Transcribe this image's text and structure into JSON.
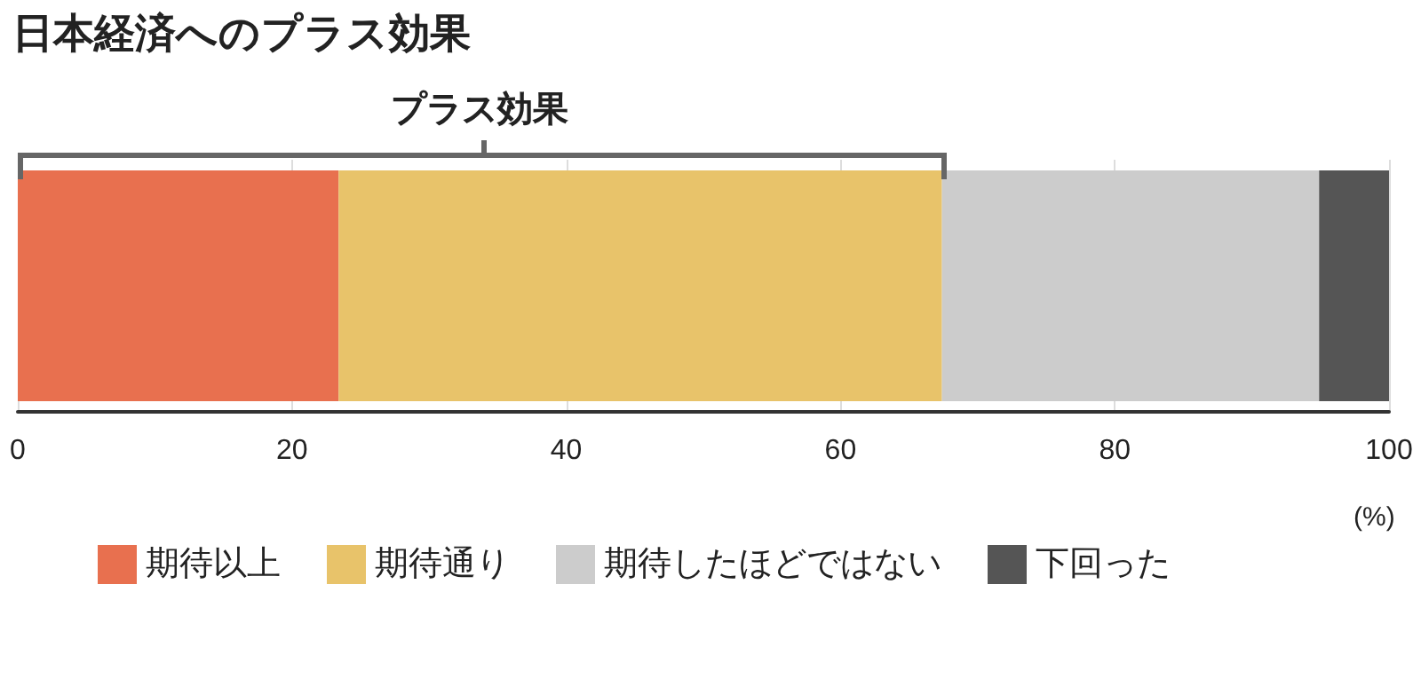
{
  "chart_data": {
    "type": "bar",
    "title": "日本経済へのプラス効果",
    "orientation": "horizontal",
    "stacked": true,
    "categories": [
      null
    ],
    "series": [
      {
        "name": "期待以上",
        "color": "#e8704f",
        "values": [
          23.4
        ]
      },
      {
        "name": "期待通り",
        "color": "#e8c36a",
        "values": [
          44.0
        ]
      },
      {
        "name": "期待したほどではない",
        "color": "#cccccc",
        "values": [
          27.5
        ]
      },
      {
        "name": "下回った",
        "color": "#555555",
        "values": [
          5.1
        ]
      }
    ],
    "xlim": [
      0,
      100
    ],
    "xticks": [
      0,
      20,
      40,
      60,
      80,
      100
    ],
    "xlabel": "(%)",
    "grid": "x",
    "legend": "bottom",
    "annotations": [
      "プラス効果"
    ]
  }
}
